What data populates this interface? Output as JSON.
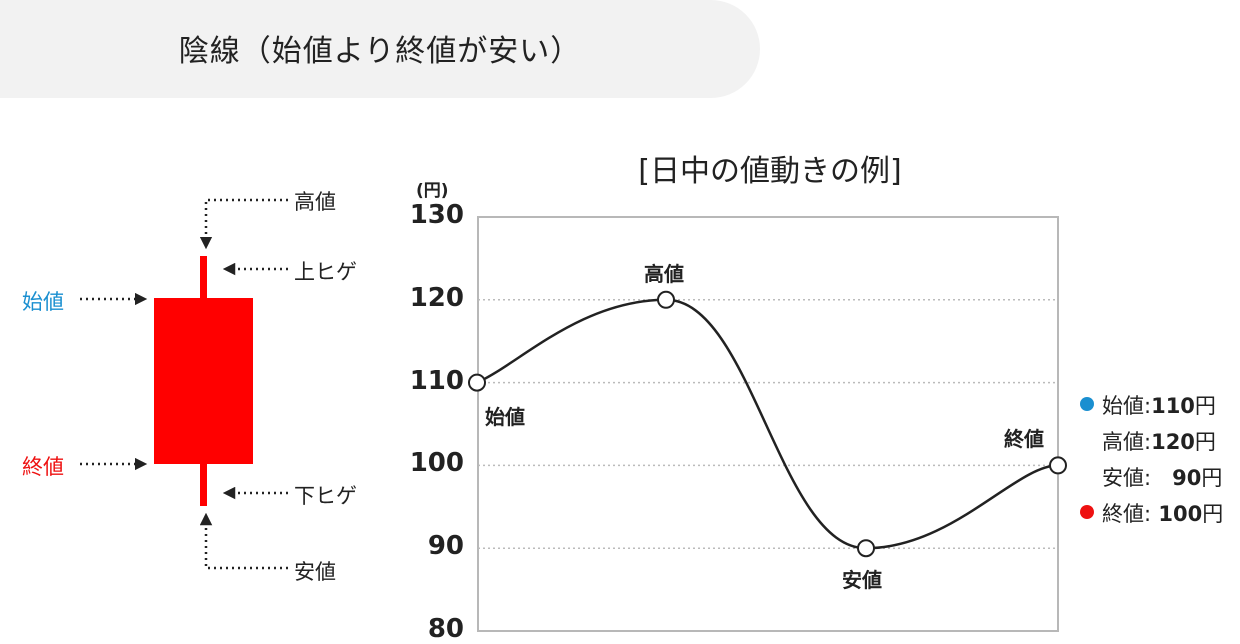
{
  "header": {
    "title": "陰線（始値より終値が安い）"
  },
  "candle": {
    "color": "#ff0000",
    "labels": {
      "high": "高値",
      "upper_shadow": "上ヒゲ",
      "open": "始値",
      "close": "終値",
      "lower_shadow": "下ヒゲ",
      "low": "安値"
    },
    "open_color": "#1a8fd0",
    "close_color": "#ee1111"
  },
  "chart_data": {
    "type": "line",
    "title": "[日中の値動きの例]",
    "ylabel": "(円)",
    "ylim": [
      80,
      130
    ],
    "yticks": [
      "130",
      "120",
      "110",
      "100",
      "90",
      "80"
    ],
    "gridlines": [
      120,
      110,
      100,
      90
    ],
    "points": [
      {
        "x": 0,
        "y": 110,
        "label": "始値"
      },
      {
        "x": 1,
        "y": 120,
        "label": "高値"
      },
      {
        "x": 2,
        "y": 90,
        "label": "安値"
      },
      {
        "x": 3,
        "y": 100,
        "label": "終値"
      }
    ]
  },
  "legend": [
    {
      "label": "始値:",
      "value": "110",
      "unit": "円",
      "dot_color": "#1a8fd0"
    },
    {
      "label": "高値:",
      "value": "120",
      "unit": "円",
      "dot_color": ""
    },
    {
      "label": "安値:",
      "value": "　90",
      "unit": "円",
      "dot_color": ""
    },
    {
      "label": "終値:",
      "value": " 100",
      "unit": "円",
      "dot_color": "#ee1111"
    }
  ]
}
